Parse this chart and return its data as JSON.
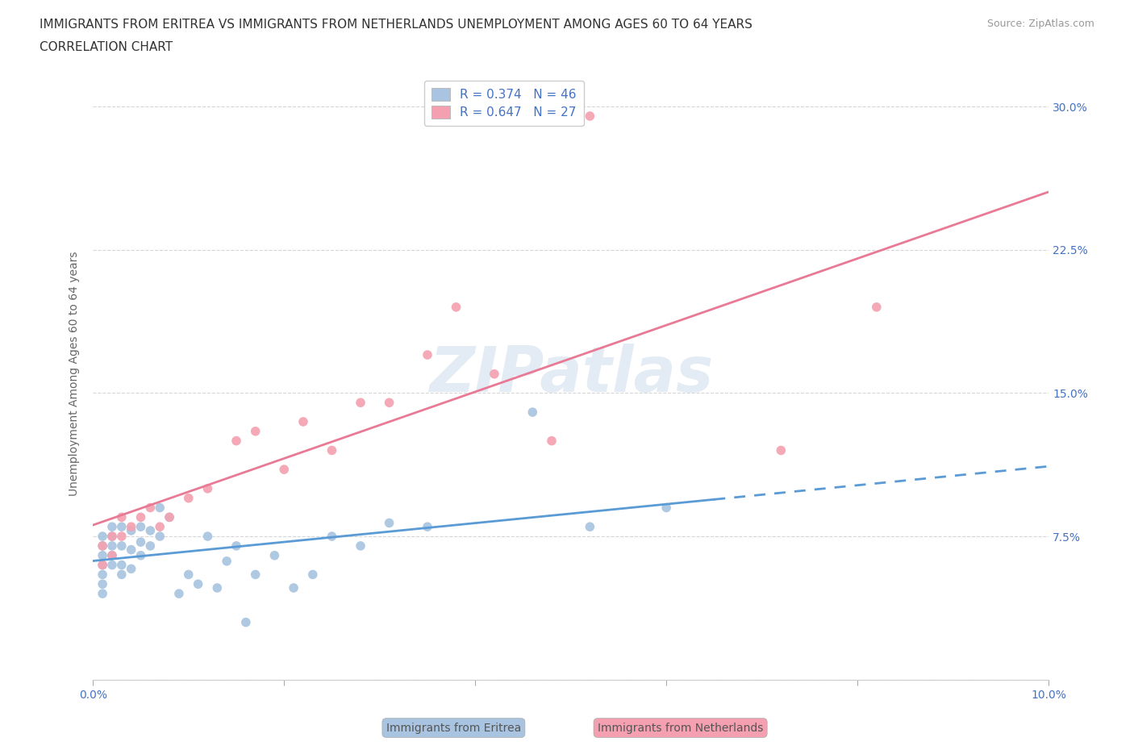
{
  "title_line1": "IMMIGRANTS FROM ERITREA VS IMMIGRANTS FROM NETHERLANDS UNEMPLOYMENT AMONG AGES 60 TO 64 YEARS",
  "title_line2": "CORRELATION CHART",
  "source_text": "Source: ZipAtlas.com",
  "ylabel": "Unemployment Among Ages 60 to 64 years",
  "xlim": [
    0.0,
    0.1
  ],
  "ylim": [
    0.0,
    0.32
  ],
  "xticks": [
    0.0,
    0.02,
    0.04,
    0.06,
    0.08,
    0.1
  ],
  "yticks": [
    0.0,
    0.075,
    0.15,
    0.225,
    0.3
  ],
  "R_eritrea": 0.374,
  "N_eritrea": 46,
  "R_netherlands": 0.647,
  "N_netherlands": 27,
  "color_eritrea": "#a8c4e0",
  "color_netherlands": "#f4a0b0",
  "color_eritrea_line": "#5b9bd5",
  "color_netherlands_line": "#e87a96",
  "color_text_blue": "#4472c4",
  "watermark_text": "ZIPatlas",
  "eritrea_x": [
    0.001,
    0.001,
    0.001,
    0.001,
    0.001,
    0.001,
    0.001,
    0.002,
    0.002,
    0.002,
    0.002,
    0.002,
    0.003,
    0.003,
    0.003,
    0.003,
    0.004,
    0.004,
    0.004,
    0.005,
    0.005,
    0.005,
    0.006,
    0.006,
    0.007,
    0.007,
    0.008,
    0.009,
    0.01,
    0.011,
    0.012,
    0.013,
    0.014,
    0.015,
    0.016,
    0.017,
    0.019,
    0.021,
    0.023,
    0.025,
    0.028,
    0.031,
    0.035,
    0.046,
    0.052,
    0.06
  ],
  "eritrea_y": [
    0.055,
    0.06,
    0.065,
    0.07,
    0.075,
    0.05,
    0.045,
    0.06,
    0.065,
    0.07,
    0.075,
    0.08,
    0.055,
    0.06,
    0.07,
    0.08,
    0.058,
    0.068,
    0.078,
    0.065,
    0.072,
    0.08,
    0.07,
    0.078,
    0.075,
    0.09,
    0.085,
    0.045,
    0.055,
    0.05,
    0.075,
    0.048,
    0.062,
    0.07,
    0.03,
    0.055,
    0.065,
    0.048,
    0.055,
    0.075,
    0.07,
    0.082,
    0.08,
    0.14,
    0.08,
    0.09
  ],
  "netherlands_x": [
    0.001,
    0.001,
    0.002,
    0.002,
    0.003,
    0.003,
    0.004,
    0.005,
    0.006,
    0.007,
    0.008,
    0.01,
    0.012,
    0.015,
    0.017,
    0.02,
    0.022,
    0.025,
    0.028,
    0.031,
    0.035,
    0.038,
    0.042,
    0.048,
    0.052,
    0.072,
    0.082
  ],
  "netherlands_y": [
    0.06,
    0.07,
    0.065,
    0.075,
    0.075,
    0.085,
    0.08,
    0.085,
    0.09,
    0.08,
    0.085,
    0.095,
    0.1,
    0.125,
    0.13,
    0.11,
    0.135,
    0.12,
    0.145,
    0.145,
    0.17,
    0.195,
    0.16,
    0.125,
    0.295,
    0.12,
    0.195
  ],
  "background_color": "#ffffff",
  "grid_color": "#cccccc",
  "title_fontsize": 11,
  "axis_label_fontsize": 10,
  "tick_fontsize": 10,
  "legend_fontsize": 11
}
